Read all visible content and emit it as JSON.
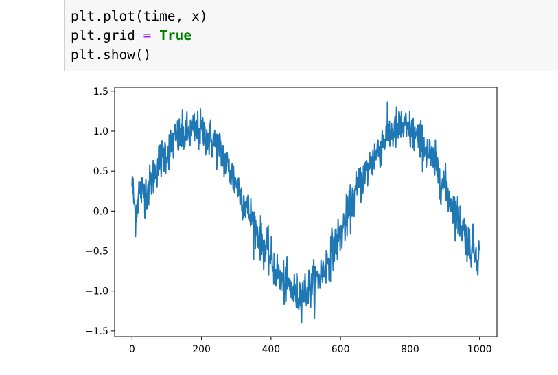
{
  "code_cell": {
    "lines": [
      {
        "parts": [
          "plt.plot(time, x)"
        ]
      },
      {
        "prefix": "plt.grid ",
        "operator": "=",
        "keyword": "True"
      },
      {
        "parts": [
          "plt.show()"
        ]
      }
    ],
    "line1": "plt.plot(time, x)",
    "line2_prefix": "plt.grid ",
    "line2_operator": "=",
    "line2_keyword": "True",
    "line3": "plt.show()"
  },
  "chart_data": {
    "type": "line",
    "title": "",
    "xlabel": "",
    "ylabel": "",
    "xlim": [
      -50,
      1050
    ],
    "ylim": [
      -1.57,
      1.55
    ],
    "xticks": [
      0,
      200,
      400,
      600,
      800,
      1000
    ],
    "xtick_labels": [
      "0",
      "200",
      "400",
      "600",
      "800",
      "1000"
    ],
    "yticks": [
      1.5,
      1.0,
      0.5,
      0.0,
      -0.5,
      -1.0,
      -1.5
    ],
    "ytick_labels": [
      "1.5",
      "1.0",
      "0.5",
      "0.0",
      "−0.5",
      "−1.0",
      "−1.5"
    ],
    "grid": false,
    "series_color": "#1f77b4",
    "series": [
      {
        "description": "noisy sine wave, period ~1000 samples, amplitude ~1, noise ~0.15",
        "x_start": 0,
        "x_end": 999,
        "n_points": 1000,
        "points_sampled": [
          [
            0,
            0.35
          ],
          [
            10,
            -0.05
          ],
          [
            20,
            0.25
          ],
          [
            40,
            0.25
          ],
          [
            50,
            0.3
          ],
          [
            75,
            0.6
          ],
          [
            100,
            0.75
          ],
          [
            125,
            0.9
          ],
          [
            150,
            0.95
          ],
          [
            175,
            1.0
          ],
          [
            200,
            1.0
          ],
          [
            225,
            0.9
          ],
          [
            250,
            0.8
          ],
          [
            275,
            0.55
          ],
          [
            300,
            0.35
          ],
          [
            325,
            0.1
          ],
          [
            350,
            -0.15
          ],
          [
            375,
            -0.4
          ],
          [
            400,
            -0.6
          ],
          [
            425,
            -0.85
          ],
          [
            450,
            -0.95
          ],
          [
            475,
            -1.05
          ],
          [
            500,
            -1.0
          ],
          [
            525,
            -0.9
          ],
          [
            550,
            -0.75
          ],
          [
            575,
            -0.5
          ],
          [
            600,
            -0.3
          ],
          [
            625,
            0.0
          ],
          [
            650,
            0.3
          ],
          [
            675,
            0.5
          ],
          [
            700,
            0.7
          ],
          [
            725,
            0.9
          ],
          [
            750,
            1.0
          ],
          [
            775,
            1.05
          ],
          [
            800,
            1.0
          ],
          [
            825,
            0.9
          ],
          [
            850,
            0.75
          ],
          [
            875,
            0.55
          ],
          [
            900,
            0.3
          ],
          [
            925,
            0.05
          ],
          [
            950,
            -0.2
          ],
          [
            975,
            -0.45
          ],
          [
            999,
            -0.55
          ]
        ]
      }
    ]
  }
}
